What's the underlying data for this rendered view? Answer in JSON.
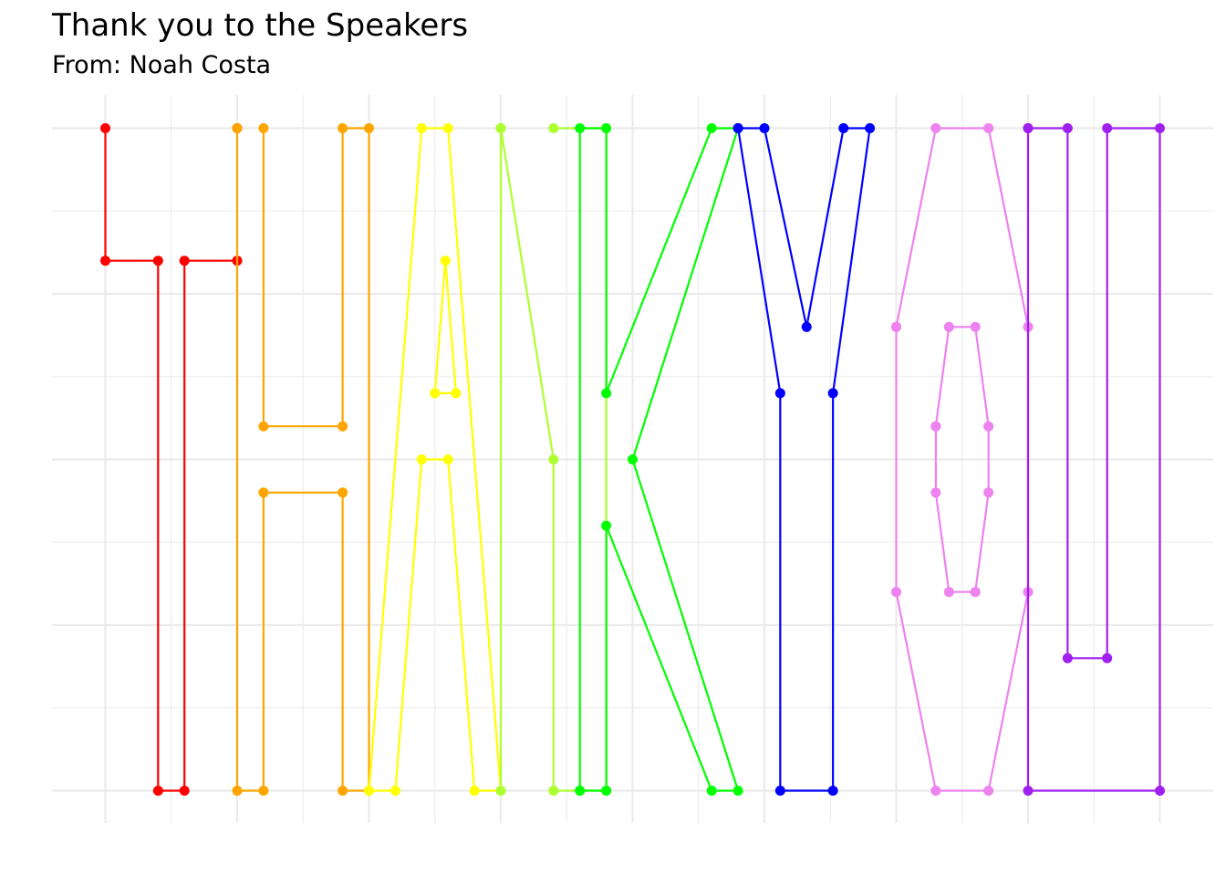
{
  "chart_data": {
    "type": "line",
    "title": "Thank you to the Speakers",
    "subtitle": "From: Noah Costa",
    "xlabel": "",
    "ylabel": "",
    "xlim": [
      0,
      20
    ],
    "ylim": [
      0,
      10
    ],
    "grid": true,
    "legend": "none",
    "series": [
      {
        "letter": "T",
        "color": "#ff0000",
        "points": [
          [
            0,
            10
          ],
          [
            0,
            8
          ],
          [
            1,
            8
          ],
          [
            1,
            0
          ],
          [
            1.5,
            0
          ],
          [
            1.5,
            8
          ],
          [
            2.5,
            8
          ]
        ],
        "extra_points": [
          [
            2.5,
            10
          ]
        ]
      },
      {
        "letter": "H",
        "color": "#ffa500",
        "points": [
          [
            2.5,
            10
          ],
          [
            2.5,
            0
          ],
          [
            3,
            0
          ],
          [
            3,
            4.5
          ],
          [
            4.5,
            4.5
          ],
          [
            4.5,
            0
          ],
          [
            5,
            0
          ],
          [
            5,
            10
          ],
          [
            4.5,
            10
          ],
          [
            4.5,
            5.5
          ],
          [
            3,
            5.5
          ],
          [
            3,
            10
          ]
        ]
      },
      {
        "letter": "A",
        "color": "#ffff00",
        "points": [
          [
            5,
            0
          ],
          [
            6,
            10
          ],
          [
            6.5,
            10
          ],
          [
            7.5,
            0
          ],
          [
            7,
            0
          ],
          [
            6.5,
            5
          ],
          [
            6,
            5
          ],
          [
            5.5,
            0
          ],
          [
            5,
            0
          ]
        ],
        "inner": [
          [
            6.25,
            6
          ],
          [
            6.45,
            8
          ],
          [
            6.65,
            6
          ],
          [
            6.25,
            6
          ]
        ]
      },
      {
        "letter": "N",
        "color": "#adff2f",
        "points": [
          [
            7.5,
            0
          ],
          [
            7.5,
            10
          ],
          [
            8.5,
            5
          ],
          [
            8.5,
            0
          ],
          [
            9.5,
            0
          ],
          [
            9.5,
            10
          ],
          [
            8.5,
            10
          ]
        ],
        "extra_points": [
          [
            7.5,
            10
          ]
        ]
      },
      {
        "letter": "K",
        "color": "#00ff00",
        "points": [
          [
            9,
            0
          ],
          [
            9,
            10
          ],
          [
            9.5,
            10
          ],
          [
            9.5,
            6
          ],
          [
            11.5,
            10
          ],
          [
            12,
            10
          ],
          [
            10,
            5
          ],
          [
            12,
            0
          ],
          [
            11.5,
            0
          ],
          [
            9.5,
            4
          ],
          [
            9.5,
            0
          ],
          [
            9,
            0
          ]
        ]
      },
      {
        "letter": "Y",
        "color": "#0000ff",
        "points": [
          [
            12,
            10
          ],
          [
            12.8,
            6
          ],
          [
            12.8,
            0
          ],
          [
            13.8,
            0
          ],
          [
            13.8,
            6
          ],
          [
            14.5,
            10
          ],
          [
            14,
            10
          ],
          [
            13.3,
            7
          ],
          [
            12.5,
            10
          ],
          [
            12,
            10
          ]
        ]
      },
      {
        "letter": "O",
        "color": "#ee82ee",
        "points": [
          [
            15,
            7
          ],
          [
            15.75,
            10
          ],
          [
            16.75,
            10
          ],
          [
            17.5,
            7
          ],
          [
            17.5,
            3
          ],
          [
            16.75,
            0
          ],
          [
            15.75,
            0
          ],
          [
            15,
            3
          ],
          [
            15,
            7
          ]
        ],
        "inner": [
          [
            15.75,
            5.5
          ],
          [
            16,
            7
          ],
          [
            16.5,
            7
          ],
          [
            16.75,
            5.5
          ],
          [
            16.75,
            4.5
          ],
          [
            16.5,
            3
          ],
          [
            16,
            3
          ],
          [
            15.75,
            4.5
          ],
          [
            15.75,
            5.5
          ]
        ]
      },
      {
        "letter": "U",
        "color": "#a020f0",
        "points": [
          [
            17.5,
            10
          ],
          [
            17.5,
            0
          ],
          [
            20,
            0
          ],
          [
            20,
            10
          ],
          [
            19,
            10
          ],
          [
            19,
            2
          ],
          [
            18.25,
            2
          ],
          [
            18.25,
            10
          ],
          [
            17.5,
            10
          ]
        ]
      }
    ]
  }
}
